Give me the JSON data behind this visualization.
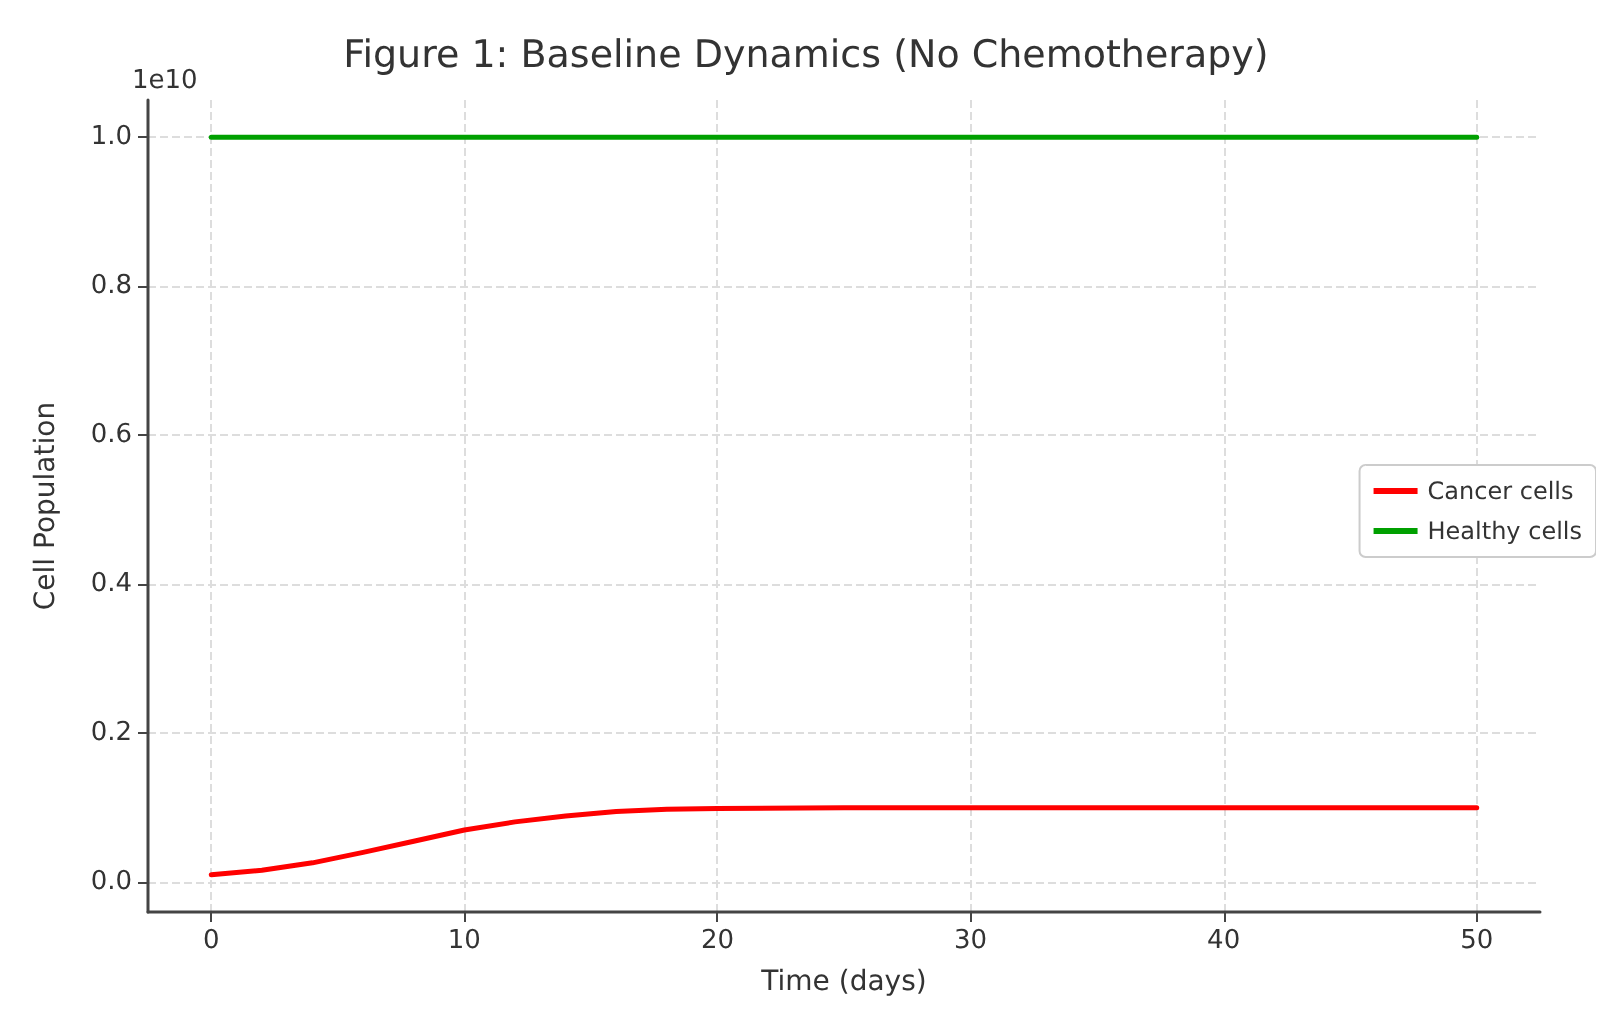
{
  "chart_data": {
    "type": "line",
    "title": "Figure 1: Baseline Dynamics (No Chemotherapy)",
    "xlabel": "Time (days)",
    "ylabel": "Cell Population",
    "annotations": [
      "1e10"
    ],
    "x": [
      0,
      2,
      4,
      6,
      8,
      10,
      12,
      14,
      16,
      18,
      20,
      25,
      30,
      35,
      40,
      45,
      50
    ],
    "series": [
      {
        "name": "Cancer cells",
        "color": "#ff0000",
        "values": [
          0.01,
          0.016,
          0.026,
          0.04,
          0.055,
          0.07,
          0.081,
          0.089,
          0.095,
          0.098,
          0.099,
          0.1,
          0.1,
          0.1,
          0.1,
          0.1,
          0.1
        ]
      },
      {
        "name": "Healthy cells",
        "color": "#00a000",
        "values": [
          1.0,
          1.0,
          1.0,
          1.0,
          1.0,
          1.0,
          1.0,
          1.0,
          1.0,
          1.0,
          1.0,
          1.0,
          1.0,
          1.0,
          1.0,
          1.0,
          1.0
        ]
      }
    ],
    "xlim": [
      -2.5,
      52.5
    ],
    "xticks": [
      0,
      10,
      20,
      30,
      40,
      50
    ],
    "ylim": [
      -0.04,
      1.05
    ],
    "yticks": [
      {
        "value": 0,
        "label": "0.0"
      },
      {
        "value": 0.2,
        "label": "0.2"
      },
      {
        "value": 0.4,
        "label": "0.4"
      },
      {
        "value": 0.6,
        "label": "0.6"
      },
      {
        "value": 0.8,
        "label": "0.8"
      },
      {
        "value": 1,
        "label": "1.0"
      }
    ],
    "grid": true,
    "legend": "right",
    "line_style": "solid",
    "marker": "none"
  }
}
